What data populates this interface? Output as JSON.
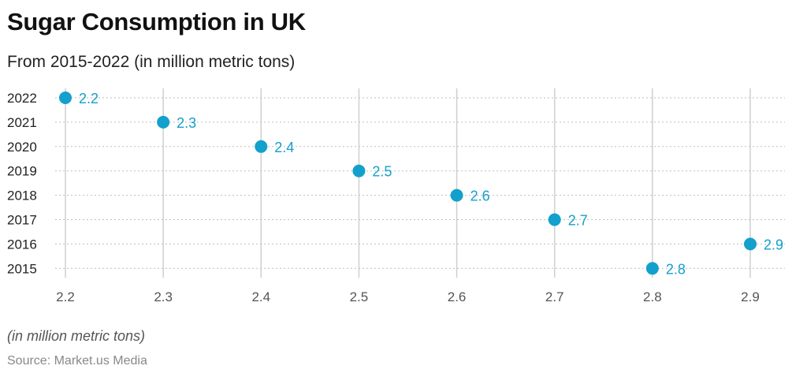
{
  "title": "Sugar Consumption in UK",
  "subtitle": "From 2015-2022 (in million metric tons)",
  "note": "(in million metric tons)",
  "source": "Source: Market.us Media",
  "chart_data": {
    "type": "scatter",
    "title": "Sugar Consumption in UK",
    "subtitle": "From 2015-2022 (in million metric tons)",
    "categories": [
      "2022",
      "2021",
      "2020",
      "2019",
      "2018",
      "2017",
      "2016",
      "2015"
    ],
    "values": [
      2.2,
      2.3,
      2.4,
      2.5,
      2.6,
      2.7,
      2.9,
      2.8
    ],
    "x_ticks": [
      "2.2",
      "2.3",
      "2.4",
      "2.5",
      "2.6",
      "2.7",
      "2.8",
      "2.9"
    ],
    "xlim": [
      2.2,
      2.9
    ],
    "grid": true,
    "dot_color": "#13a0cc"
  }
}
